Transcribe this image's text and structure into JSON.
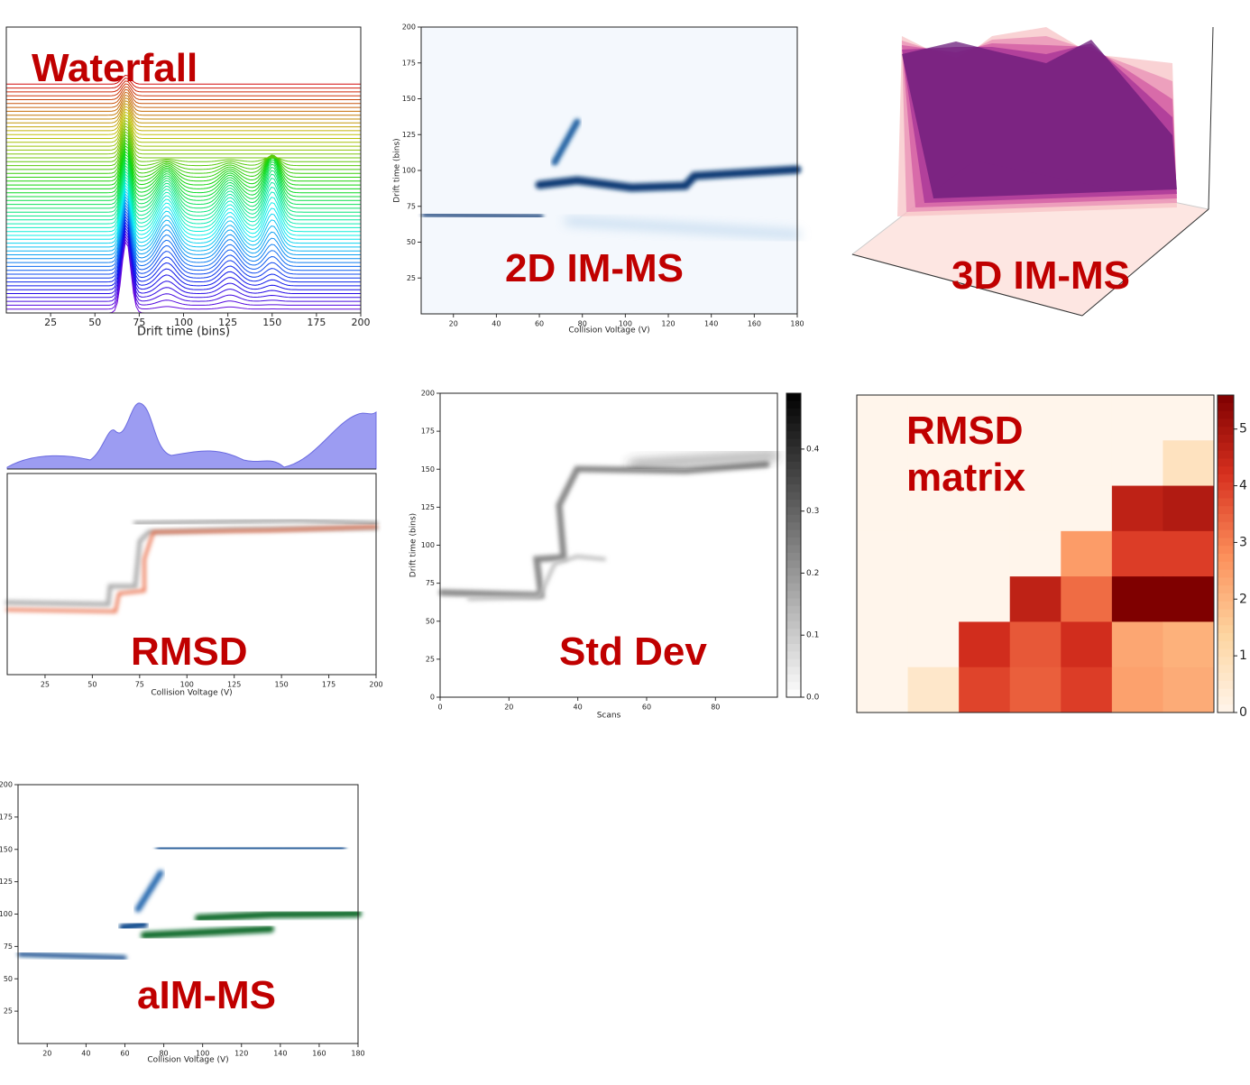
{
  "chart_data": [
    {
      "type": "waterfall",
      "title": "Waterfall",
      "xlabel": "Drift time (bins)",
      "xlim": [
        0,
        200
      ],
      "xticks": [
        25,
        50,
        75,
        100,
        125,
        150,
        175,
        200
      ]
    },
    {
      "type": "heatmap",
      "title": "2D IM-MS",
      "xlabel": "Collision Voltage (V)",
      "ylabel": "Drift time (bins)",
      "xlim": [
        5,
        180
      ],
      "xticks": [
        20,
        40,
        60,
        80,
        100,
        120,
        140,
        160,
        180
      ],
      "ylim": [
        0,
        200
      ],
      "yticks": [
        25,
        50,
        75,
        100,
        125,
        150,
        175,
        200
      ]
    },
    {
      "type": "surface3d",
      "title": "3D IM-MS"
    },
    {
      "type": "rmsd",
      "title": "RMSD",
      "xlabel": "Collision Voltage (V)",
      "xlim": [
        5,
        200
      ],
      "xticks": [
        25,
        50,
        75,
        100,
        125,
        150,
        175,
        200
      ]
    },
    {
      "type": "stddev",
      "title": "Std Dev",
      "xlabel": "Scans",
      "ylabel": "Drift time (bins)",
      "xlim": [
        0,
        98
      ],
      "xticks": [
        0,
        20,
        40,
        60,
        80
      ],
      "ylim": [
        0,
        200
      ],
      "yticks": [
        0,
        25,
        50,
        75,
        100,
        125,
        150,
        175,
        200
      ],
      "clim": [
        0,
        0.49
      ],
      "cticks": [
        {
          "value": 0,
          "label": "0.0"
        },
        0.1,
        0.2,
        0.3,
        0.4
      ]
    },
    {
      "type": "matrix",
      "title": "RMSD matrix",
      "values": [
        [
          0,
          0,
          0,
          0,
          0,
          0,
          0
        ],
        [
          0,
          0,
          0,
          0,
          0,
          0,
          0.8
        ],
        [
          0,
          0,
          0,
          0,
          0,
          4.6,
          4.8
        ],
        [
          0,
          0,
          0,
          0,
          2.5,
          4.0,
          4.0
        ],
        [
          0,
          0,
          0,
          4.6,
          3.3,
          5.6,
          5.6
        ],
        [
          0,
          0,
          4.3,
          3.6,
          4.3,
          2.3,
          2.1
        ],
        [
          0,
          0.6,
          3.9,
          3.5,
          4.0,
          2.4,
          2.2
        ]
      ],
      "clim": [
        0,
        5.6
      ],
      "cticks": [
        0,
        1,
        2,
        3,
        4,
        5
      ]
    },
    {
      "type": "heatmap",
      "title": "aIM-MS",
      "xlabel": "Collision Voltage (V)",
      "xlim": [
        5,
        180
      ],
      "xticks": [
        20,
        40,
        60,
        80,
        100,
        120,
        140,
        160,
        180
      ],
      "ylim": [
        0,
        200
      ],
      "yticks": [
        25,
        50,
        75,
        100,
        125,
        150,
        175,
        200
      ]
    }
  ]
}
